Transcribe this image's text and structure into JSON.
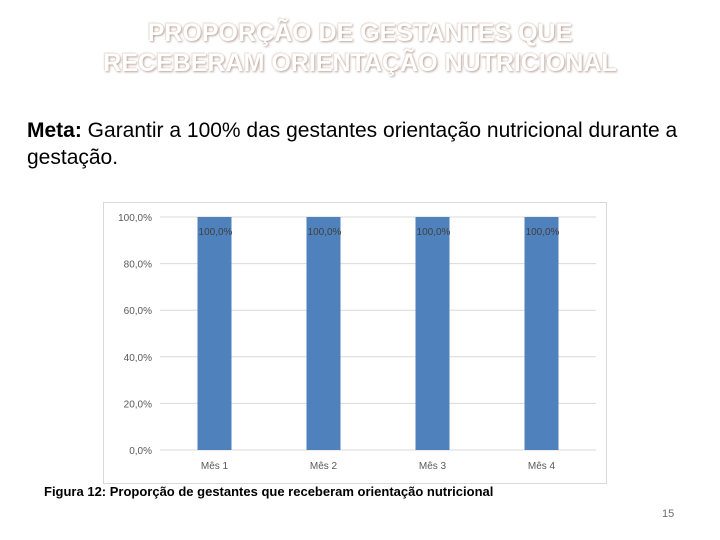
{
  "slide": {
    "title_line1": "PROPORÇÃO DE GESTANTES QUE",
    "title_line2": "RECEBERAM ORIENTAÇÃO NUTRICIONAL",
    "goal_label": "Meta:",
    "goal_text": " Garantir a 100% das gestantes orientação nutricional durante a gestação.",
    "caption": "Figura 12: Proporção de gestantes que receberam orientação nutricional",
    "page_number": "15"
  },
  "chart_data": {
    "type": "bar",
    "categories": [
      "Mês 1",
      "Mês 2",
      "Mês 3",
      "Mês 4"
    ],
    "series": [
      {
        "values": [
          100.0,
          100.0,
          100.0,
          100.0
        ]
      }
    ],
    "data_labels": [
      "100,0%",
      "100,0%",
      "100,0%",
      "100,0%"
    ],
    "y_ticks": [
      0,
      20,
      40,
      60,
      80,
      100
    ],
    "y_tick_labels": [
      "0,0%",
      "20,0%",
      "40,0%",
      "60,0%",
      "80,0%",
      "100,0%"
    ],
    "ylim": [
      0,
      100
    ],
    "grid": true,
    "legend": "none",
    "bar_color": "#4f81bd",
    "title": "",
    "xlabel": "",
    "ylabel": ""
  }
}
